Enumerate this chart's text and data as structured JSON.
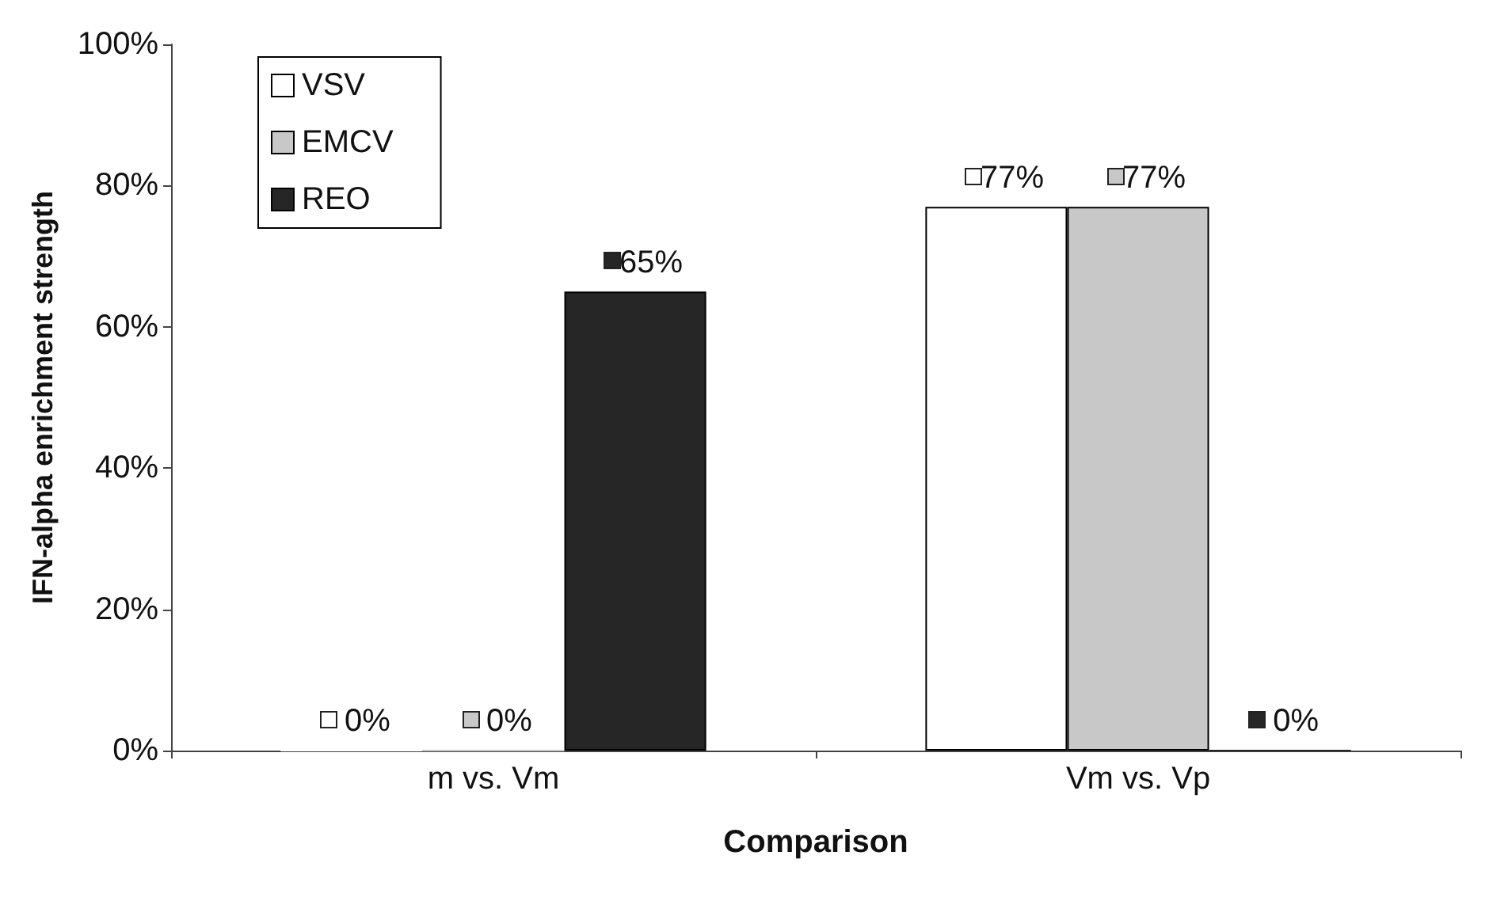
{
  "chart_data": {
    "type": "bar",
    "xlabel": "Comparison",
    "ylabel": "IFN-alpha enrichment strength",
    "categories": [
      "m vs. Vm",
      "Vm vs. Vp"
    ],
    "series": [
      {
        "name": "VSV",
        "color": "#ffffff",
        "values": [
          0,
          77
        ],
        "value_labels": [
          "0%",
          "77%"
        ]
      },
      {
        "name": "EMCV",
        "color": "#c8c8c8",
        "values": [
          0,
          77
        ],
        "value_labels": [
          "0%",
          "77%"
        ]
      },
      {
        "name": "REO",
        "color": "#262626",
        "values": [
          65,
          0
        ],
        "value_labels": [
          "65%",
          "0%"
        ]
      }
    ],
    "ylim": [
      0,
      100
    ],
    "yticks": [
      {
        "value": 0,
        "label": "0%"
      },
      {
        "value": 20,
        "label": "20%"
      },
      {
        "value": 40,
        "label": "40%"
      },
      {
        "value": 60,
        "label": "60%"
      },
      {
        "value": 80,
        "label": "80%"
      },
      {
        "value": 100,
        "label": "100%"
      }
    ],
    "grid": false,
    "legend": "top left"
  }
}
